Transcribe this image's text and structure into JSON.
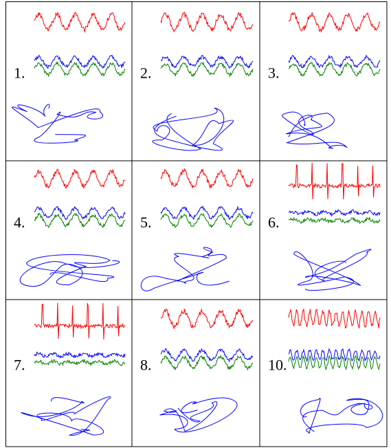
{
  "panels": [
    {
      "label": "1.",
      "variant": "smooth",
      "colors": {
        "top": "#ff0000",
        "mid1": "#0000ff",
        "mid2": "#008000",
        "loop": "#0000ff"
      }
    },
    {
      "label": "2.",
      "variant": "smooth",
      "colors": {
        "top": "#ff0000",
        "mid1": "#0000ff",
        "mid2": "#008000",
        "loop": "#0000ff"
      }
    },
    {
      "label": "3.",
      "variant": "smooth",
      "colors": {
        "top": "#ff0000",
        "mid1": "#0000ff",
        "mid2": "#008000",
        "loop": "#0000ff"
      }
    },
    {
      "label": "4.",
      "variant": "smooth",
      "colors": {
        "top": "#ff0000",
        "mid1": "#0000ff",
        "mid2": "#008000",
        "loop": "#0000ff"
      }
    },
    {
      "label": "5.",
      "variant": "smooth",
      "colors": {
        "top": "#ff0000",
        "mid1": "#0000ff",
        "mid2": "#008000",
        "loop": "#0000ff"
      }
    },
    {
      "label": "6.",
      "variant": "spiky",
      "colors": {
        "top": "#ff0000",
        "mid1": "#0000ff",
        "mid2": "#008000",
        "loop": "#0000ff"
      }
    },
    {
      "label": "7.",
      "variant": "spiky",
      "colors": {
        "top": "#ff0000",
        "mid1": "#0000ff",
        "mid2": "#008000",
        "loop": "#0000ff"
      }
    },
    {
      "label": "8.",
      "variant": "smooth",
      "colors": {
        "top": "#ff0000",
        "mid1": "#0000ff",
        "mid2": "#008000",
        "loop": "#0000ff"
      }
    },
    {
      "label": "10.",
      "variant": "dense",
      "colors": {
        "top": "#ff0000",
        "mid1": "#0000ff",
        "mid2": "#008000",
        "loop": "#0000ff"
      }
    }
  ],
  "grid_color": "#000000"
}
